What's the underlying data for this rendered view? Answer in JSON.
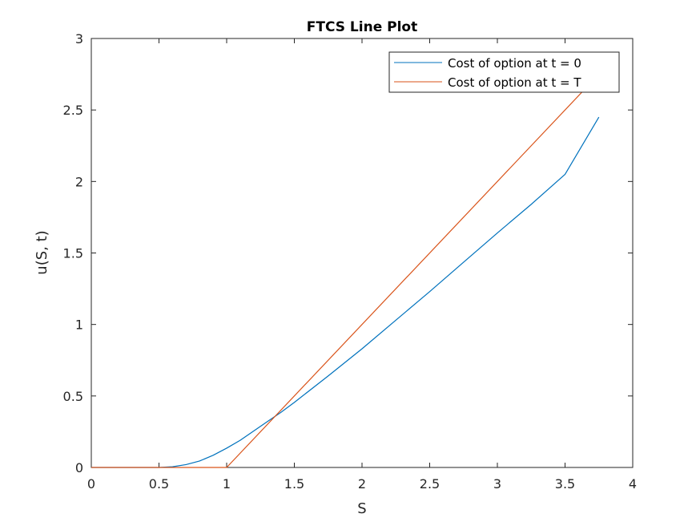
{
  "chart_data": {
    "type": "line",
    "title": "FTCS Line Plot",
    "xlabel": "S",
    "ylabel": "u(S, t)",
    "xlim": [
      0,
      4
    ],
    "ylim": [
      0,
      3
    ],
    "xticks": [
      0,
      0.5,
      1,
      1.5,
      2,
      2.5,
      3,
      3.5,
      4
    ],
    "yticks": [
      0,
      0.5,
      1,
      1.5,
      2,
      2.5,
      3
    ],
    "xtick_labels": [
      "0",
      "0.5",
      "1",
      "1.5",
      "2",
      "2.5",
      "3",
      "3.5",
      "4"
    ],
    "ytick_labels": [
      "0",
      "0.5",
      "1",
      "1.5",
      "2",
      "2.5",
      "3"
    ],
    "grid": false,
    "legend_position": "top-right",
    "series": [
      {
        "name": "Cost of option at t = 0",
        "color": "#0072BD",
        "x": [
          0,
          0.5,
          0.6,
          0.7,
          0.8,
          0.9,
          1.0,
          1.1,
          1.2,
          1.3,
          1.4,
          1.5,
          1.75,
          2.0,
          2.25,
          2.5,
          2.75,
          3.0,
          3.25,
          3.5,
          3.75
        ],
        "y": [
          0,
          0,
          0.005,
          0.02,
          0.045,
          0.085,
          0.135,
          0.19,
          0.255,
          0.32,
          0.385,
          0.455,
          0.64,
          0.83,
          1.03,
          1.23,
          1.435,
          1.64,
          1.84,
          2.05,
          2.45
        ]
      },
      {
        "name": "Cost of option at t = T",
        "color": "#D95319",
        "x": [
          0,
          1.0,
          3.7
        ],
        "y": [
          0,
          0,
          2.7
        ]
      }
    ]
  }
}
